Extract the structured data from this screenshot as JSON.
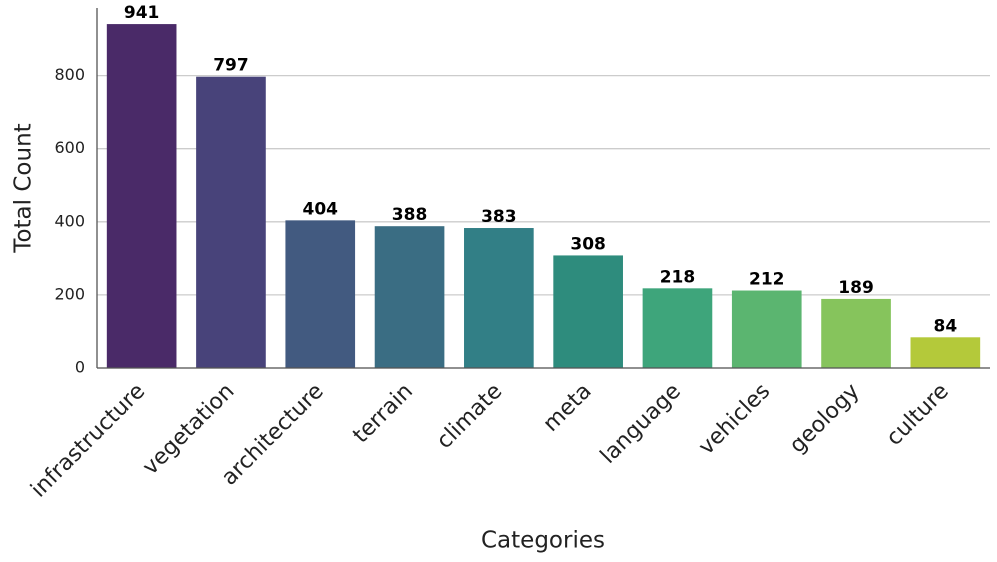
{
  "chart_data": {
    "type": "bar",
    "xlabel": "Categories",
    "ylabel": "Total Count",
    "categories": [
      "infrastructure",
      "vegetation",
      "architecture",
      "terrain",
      "climate",
      "meta",
      "language",
      "vehicles",
      "geology",
      "culture"
    ],
    "values": [
      941,
      797,
      404,
      388,
      383,
      308,
      218,
      212,
      189,
      84
    ],
    "colors": [
      "#4a2a68",
      "#48437a",
      "#425a80",
      "#3a6d83",
      "#327f86",
      "#2e8c7d",
      "#3ea57b",
      "#5bb570",
      "#86c45c",
      "#b4c93a"
    ],
    "ylim": [
      0,
      985
    ],
    "yticks": [
      0,
      200,
      400,
      600,
      800
    ],
    "grid": true
  }
}
